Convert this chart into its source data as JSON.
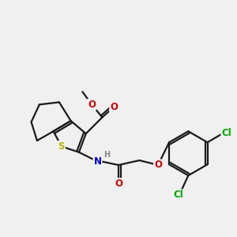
{
  "bg_color": "#f0f0f0",
  "bond_color": "#1a1a1a",
  "bond_width": 1.6,
  "atom_colors": {
    "S": "#b8b800",
    "N": "#0000cc",
    "O": "#dd0000",
    "Cl": "#00aa00",
    "C": "#1a1a1a",
    "H": "#888888"
  },
  "font_size": 8.5
}
